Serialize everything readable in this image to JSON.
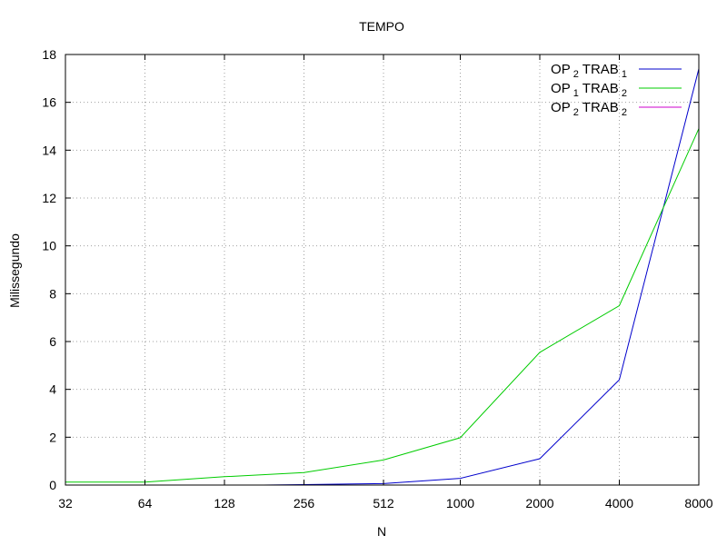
{
  "chart_data": {
    "type": "line",
    "title": "TEMPO",
    "xlabel": "N",
    "ylabel": "Milissegundo",
    "x_scale": "log2",
    "x": [
      32,
      64,
      128,
      256,
      512,
      1000,
      2000,
      4000,
      8000
    ],
    "x_tick_labels": [
      "32",
      "64",
      "128",
      "256",
      "512",
      "1000",
      "2000",
      "4000",
      "8000"
    ],
    "xlim": [
      32,
      8000
    ],
    "ylim": [
      0,
      18
    ],
    "y_ticks": [
      0,
      2,
      4,
      6,
      8,
      10,
      12,
      14,
      16,
      18
    ],
    "grid": true,
    "legend_position": "top-right",
    "series": [
      {
        "name": "OP 2 TRAB 1",
        "legend": {
          "base1": "OP",
          "sub1": "2",
          "base2": "TRAB",
          "sub2": "1"
        },
        "color": "#0000cc",
        "points": [
          [
            180,
            0.0
          ],
          [
            256,
            0.02
          ],
          [
            512,
            0.06
          ],
          [
            1000,
            0.28
          ],
          [
            2000,
            1.1
          ],
          [
            4000,
            4.4
          ],
          [
            8000,
            17.4
          ]
        ]
      },
      {
        "name": "OP 1 TRAB 2",
        "legend": {
          "base1": "OP",
          "sub1": "1",
          "base2": "TRAB",
          "sub2": "2"
        },
        "color": "#00cc00",
        "points": [
          [
            32,
            0.12
          ],
          [
            64,
            0.12
          ],
          [
            128,
            0.35
          ],
          [
            256,
            0.52
          ],
          [
            512,
            1.05
          ],
          [
            1000,
            1.98
          ],
          [
            2000,
            5.55
          ],
          [
            4000,
            7.5
          ],
          [
            8000,
            14.9
          ]
        ]
      },
      {
        "name": "OP 2 TRAB 2",
        "legend": {
          "base1": "OP",
          "sub1": "2",
          "base2": "TRAB",
          "sub2": "2"
        },
        "color": "#cc00cc",
        "points": [
          [
            1400,
            0.0
          ],
          [
            2000,
            0.0
          ],
          [
            4000,
            0.0
          ],
          [
            8000,
            0.0
          ]
        ]
      }
    ]
  }
}
